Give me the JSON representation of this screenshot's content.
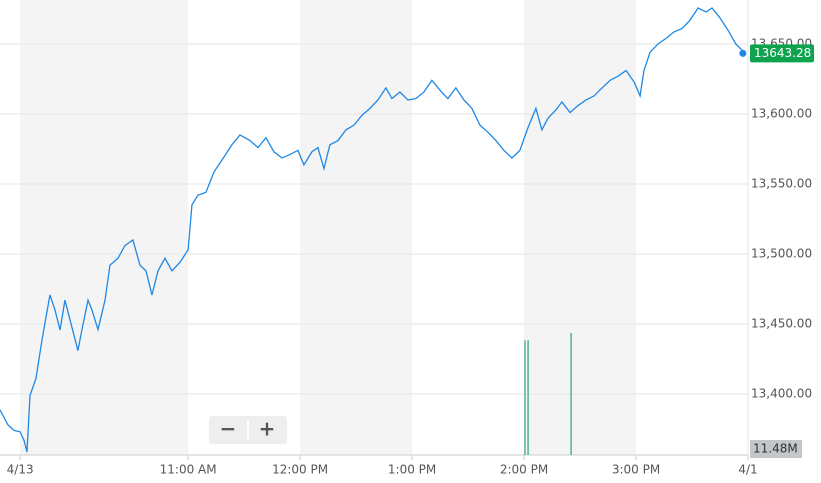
{
  "chart_data": {
    "type": "line",
    "xlim": [
      9.32,
      16.0
    ],
    "ylim": [
      13356.4,
      13681.4
    ],
    "xticks": [
      {
        "value": 9.5,
        "label": "4/13"
      },
      {
        "value": 11,
        "label": "11:00 AM"
      },
      {
        "value": 12,
        "label": "12:00 PM"
      },
      {
        "value": 13,
        "label": "1:00 PM"
      },
      {
        "value": 14,
        "label": "2:00 PM"
      },
      {
        "value": 15,
        "label": "3:00 PM"
      },
      {
        "value": 16,
        "label": "4/1"
      }
    ],
    "yticks": [
      {
        "value": 13400,
        "label": "13,400.00"
      },
      {
        "value": 13450,
        "label": "13,450.00"
      },
      {
        "value": 13500,
        "label": "13,500.00"
      },
      {
        "value": 13550,
        "label": "13,550.00"
      },
      {
        "value": 13600,
        "label": "13,600.00"
      },
      {
        "value": 13650,
        "label": "13,650.00"
      }
    ],
    "grid": true,
    "series": [
      {
        "color": "#1e88e5",
        "x": [
          9.32,
          9.391,
          9.445,
          9.499,
          9.534,
          9.561,
          9.588,
          9.641,
          9.695,
          9.766,
          9.811,
          9.856,
          9.9,
          9.945,
          10.016,
          10.052,
          10.106,
          10.141,
          10.195,
          10.258,
          10.302,
          10.374,
          10.436,
          10.507,
          10.57,
          10.624,
          10.677,
          10.731,
          10.793,
          10.856,
          10.927,
          11.0,
          11.034,
          11.088,
          11.159,
          11.231,
          11.302,
          11.391,
          11.463,
          11.552,
          11.624,
          11.695,
          11.766,
          11.838,
          11.909,
          11.981,
          12.034,
          12.106,
          12.159,
          12.213,
          12.266,
          12.338,
          12.409,
          12.481,
          12.552,
          12.624,
          12.695,
          12.766,
          12.82,
          12.891,
          12.963,
          13.034,
          13.106,
          13.177,
          13.249,
          13.32,
          13.391,
          13.463,
          13.534,
          13.606,
          13.677,
          13.749,
          13.82,
          13.891,
          13.963,
          14.034,
          14.106,
          14.159,
          14.214,
          14.286,
          14.338,
          14.411,
          14.482,
          14.554,
          14.625,
          14.696,
          14.768,
          14.839,
          14.911,
          14.982,
          15.036,
          15.071,
          15.125,
          15.196,
          15.268,
          15.339,
          15.411,
          15.482,
          15.554,
          15.625,
          15.679,
          15.75,
          15.82,
          15.891,
          15.945,
          15.954
        ],
        "values": [
          13388.6,
          13377.9,
          13374,
          13373,
          13367,
          13358.6,
          13399,
          13411,
          13438.6,
          13470.7,
          13460,
          13445.7,
          13467,
          13453,
          13431,
          13446,
          13467,
          13460,
          13446,
          13467,
          13492,
          13497,
          13506,
          13510,
          13492,
          13487.9,
          13470.7,
          13487.9,
          13497,
          13488,
          13494,
          13503,
          13535,
          13542,
          13544,
          13558.6,
          13567,
          13578,
          13585,
          13581,
          13576,
          13583,
          13573,
          13568.6,
          13571,
          13574,
          13563.6,
          13573,
          13576,
          13561,
          13578,
          13581,
          13588.6,
          13592,
          13599,
          13604,
          13610,
          13618.6,
          13611,
          13615.7,
          13610,
          13611,
          13615.7,
          13624,
          13617,
          13611,
          13618.6,
          13610,
          13604,
          13592,
          13587,
          13581,
          13574,
          13568.6,
          13574,
          13590,
          13604,
          13588.6,
          13597,
          13603,
          13608.6,
          13601,
          13606,
          13610,
          13612.9,
          13618.6,
          13624,
          13627,
          13631,
          13623,
          13612.9,
          13631,
          13644,
          13650,
          13654,
          13658.6,
          13661,
          13667,
          13675.7,
          13672.9,
          13675.7,
          13668.6,
          13660,
          13650,
          13645.7,
          13643.28
        ]
      }
    ],
    "last_color": "#0fa34f",
    "volume": {
      "color": "#2aa870",
      "label": "11.48M",
      "x": [
        14.008,
        14.036,
        14.42
      ],
      "values": [
        10.8,
        10.8,
        11.48
      ]
    }
  },
  "controls": {
    "zoom_out": "−",
    "zoom_in": "+"
  }
}
